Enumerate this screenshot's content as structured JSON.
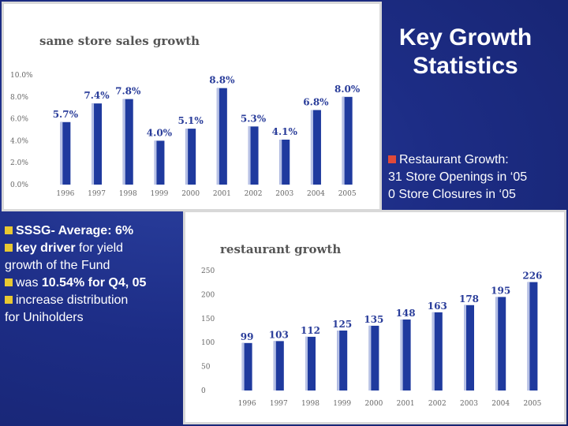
{
  "slide": {
    "title_line1": "Key Growth",
    "title_line2": "Statistics"
  },
  "restaurant": {
    "label": "Restaurant Growth:",
    "openings": "31 Store Openings in ‘05",
    "closures": "0 Store Closures in ‘05"
  },
  "sssg": {
    "line1": "SSSG- Average: 6%",
    "line2a": "key driver",
    "line2b": " for yield",
    "line3": "growth of the Fund",
    "line4a": "was ",
    "line4b": "10.54% for Q4, 05",
    "line5": "increase distribution",
    "line6": "for Uniholders"
  },
  "colors": {
    "bar": "#1f3a9e",
    "slide_bg": "#1d2d86",
    "bullet_restaurant": "#e04a3a",
    "bullet_sssg": "#e8c832"
  },
  "chart_data": [
    {
      "type": "bar",
      "title": "same store sales growth",
      "categories": [
        "1996",
        "1997",
        "1998",
        "1999",
        "2000",
        "2001",
        "2002",
        "2003",
        "2004",
        "2005"
      ],
      "values": [
        5.7,
        7.4,
        7.8,
        4.0,
        5.1,
        8.8,
        5.3,
        4.1,
        6.8,
        8.0
      ],
      "value_labels": [
        "5.7%",
        "7.4%",
        "7.8%",
        "4.0%",
        "5.1%",
        "8.8%",
        "5.3%",
        "4.1%",
        "6.8%",
        "8.0%"
      ],
      "yticks": [
        "0.0%",
        "2.0%",
        "4.0%",
        "6.0%",
        "8.0%",
        "10.0%"
      ],
      "ylim": [
        0,
        10
      ],
      "grid": false
    },
    {
      "type": "bar",
      "title": "restaurant growth",
      "categories": [
        "1996",
        "1997",
        "1998",
        "1999",
        "2000",
        "2001",
        "2002",
        "2003",
        "2004",
        "2005"
      ],
      "values": [
        99,
        103,
        112,
        125,
        135,
        148,
        163,
        178,
        195,
        226
      ],
      "value_labels": [
        "99",
        "103",
        "112",
        "125",
        "135",
        "148",
        "163",
        "178",
        "195",
        "226"
      ],
      "yticks": [
        "0",
        "50",
        "100",
        "150",
        "200",
        "250"
      ],
      "ylim": [
        0,
        250
      ],
      "grid": false
    }
  ]
}
